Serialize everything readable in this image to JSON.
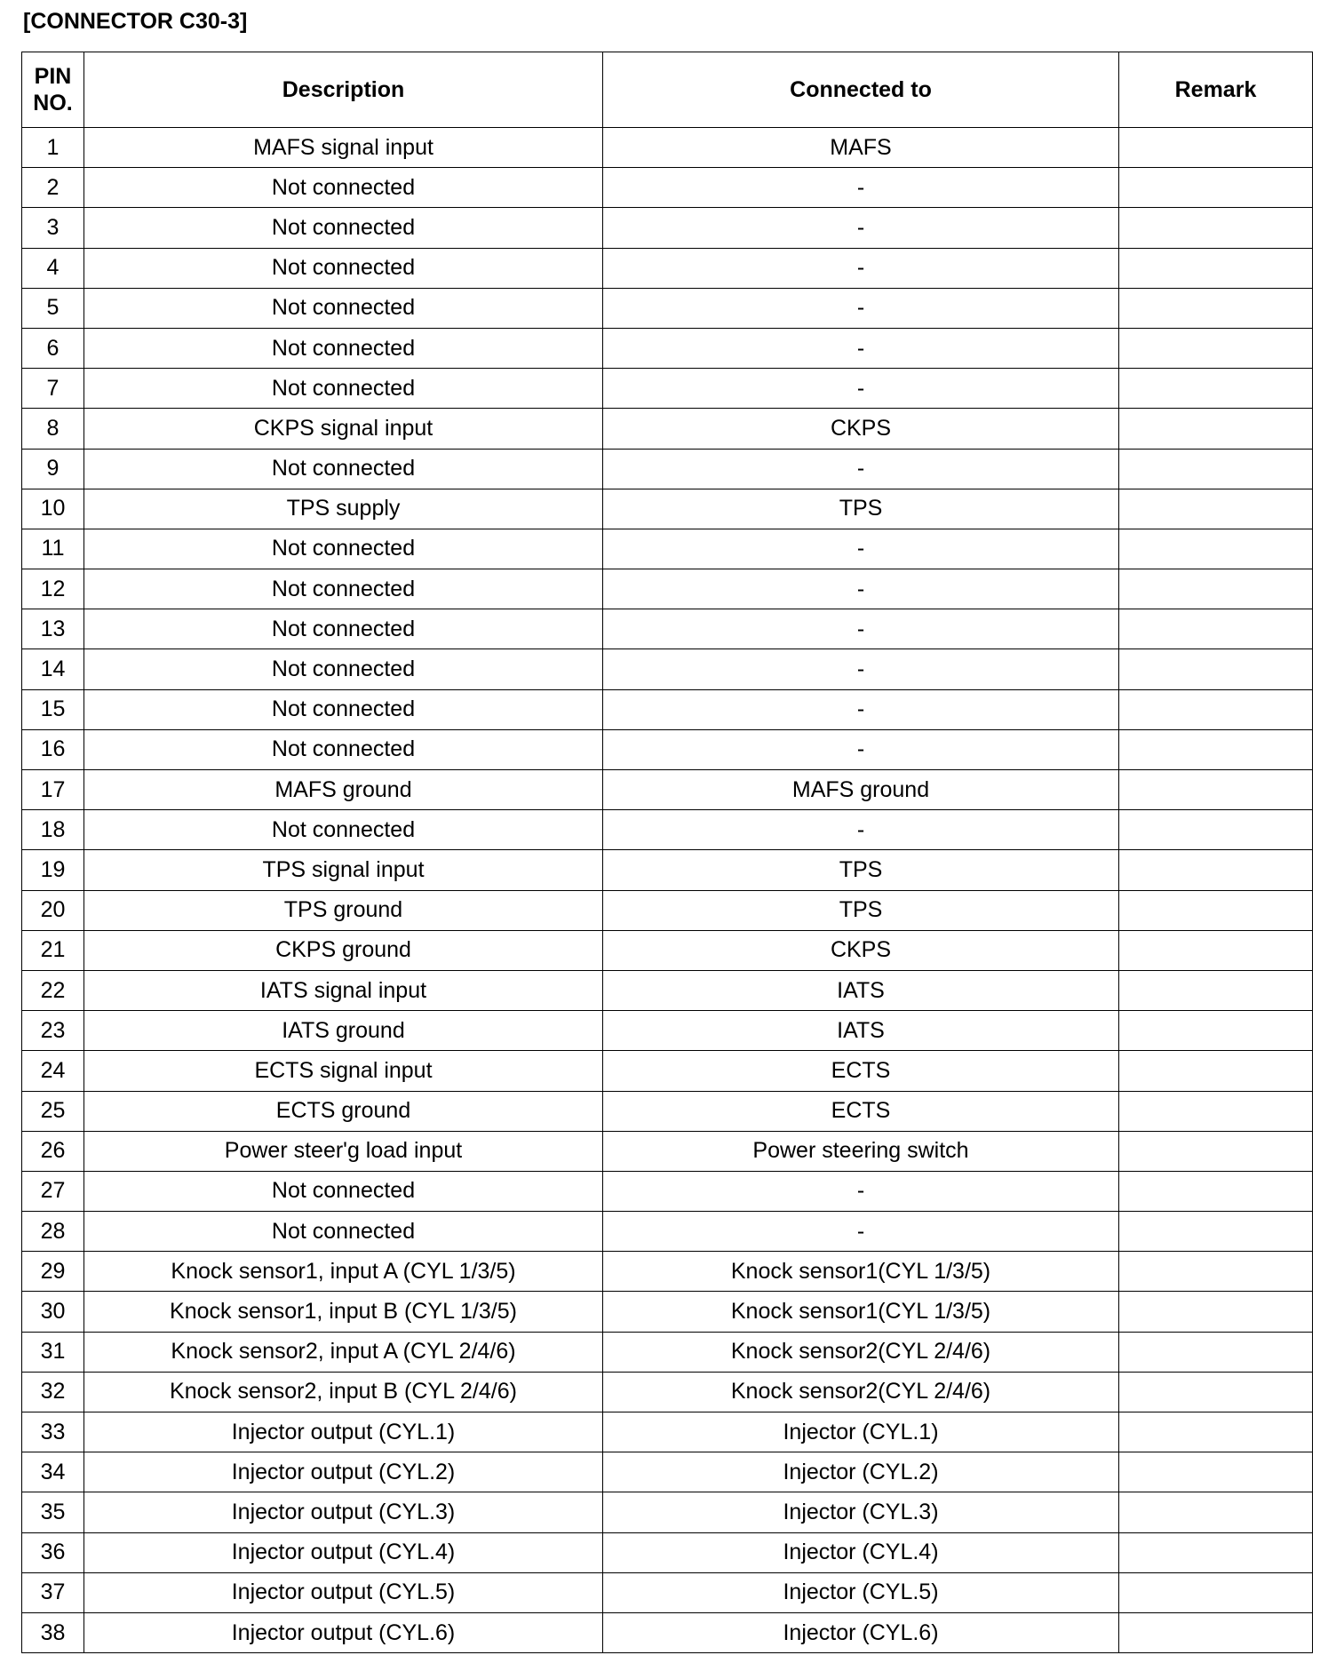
{
  "title": "[CONNECTOR C30-3]",
  "table": {
    "headers": {
      "pin": "PIN NO.",
      "description": "Description",
      "connected_to": "Connected to",
      "remark": "Remark"
    },
    "rows": [
      {
        "pin": "1",
        "description": "MAFS signal input",
        "connected_to": "MAFS",
        "remark": ""
      },
      {
        "pin": "2",
        "description": "Not connected",
        "connected_to": "-",
        "remark": ""
      },
      {
        "pin": "3",
        "description": "Not connected",
        "connected_to": "-",
        "remark": ""
      },
      {
        "pin": "4",
        "description": "Not connected",
        "connected_to": "-",
        "remark": ""
      },
      {
        "pin": "5",
        "description": "Not connected",
        "connected_to": "-",
        "remark": ""
      },
      {
        "pin": "6",
        "description": "Not connected",
        "connected_to": "-",
        "remark": ""
      },
      {
        "pin": "7",
        "description": "Not connected",
        "connected_to": "-",
        "remark": ""
      },
      {
        "pin": "8",
        "description": "CKPS signal input",
        "connected_to": "CKPS",
        "remark": ""
      },
      {
        "pin": "9",
        "description": "Not connected",
        "connected_to": "-",
        "remark": ""
      },
      {
        "pin": "10",
        "description": "TPS supply",
        "connected_to": "TPS",
        "remark": ""
      },
      {
        "pin": "11",
        "description": "Not connected",
        "connected_to": "-",
        "remark": ""
      },
      {
        "pin": "12",
        "description": "Not connected",
        "connected_to": "-",
        "remark": ""
      },
      {
        "pin": "13",
        "description": "Not connected",
        "connected_to": "-",
        "remark": ""
      },
      {
        "pin": "14",
        "description": "Not connected",
        "connected_to": "-",
        "remark": ""
      },
      {
        "pin": "15",
        "description": "Not connected",
        "connected_to": "-",
        "remark": ""
      },
      {
        "pin": "16",
        "description": "Not connected",
        "connected_to": "-",
        "remark": ""
      },
      {
        "pin": "17",
        "description": "MAFS ground",
        "connected_to": "MAFS ground",
        "remark": ""
      },
      {
        "pin": "18",
        "description": "Not connected",
        "connected_to": "-",
        "remark": ""
      },
      {
        "pin": "19",
        "description": "TPS signal input",
        "connected_to": "TPS",
        "remark": ""
      },
      {
        "pin": "20",
        "description": "TPS ground",
        "connected_to": "TPS",
        "remark": ""
      },
      {
        "pin": "21",
        "description": "CKPS ground",
        "connected_to": "CKPS",
        "remark": ""
      },
      {
        "pin": "22",
        "description": "IATS signal input",
        "connected_to": "IATS",
        "remark": ""
      },
      {
        "pin": "23",
        "description": "IATS ground",
        "connected_to": "IATS",
        "remark": ""
      },
      {
        "pin": "24",
        "description": "ECTS signal input",
        "connected_to": "ECTS",
        "remark": ""
      },
      {
        "pin": "25",
        "description": "ECTS ground",
        "connected_to": "ECTS",
        "remark": ""
      },
      {
        "pin": "26",
        "description": "Power steer'g load input",
        "connected_to": "Power steering switch",
        "remark": ""
      },
      {
        "pin": "27",
        "description": "Not connected",
        "connected_to": "-",
        "remark": ""
      },
      {
        "pin": "28",
        "description": "Not connected",
        "connected_to": "-",
        "remark": ""
      },
      {
        "pin": "29",
        "description": "Knock sensor1, input A (CYL 1/3/5)",
        "connected_to": "Knock sensor1(CYL 1/3/5)",
        "remark": ""
      },
      {
        "pin": "30",
        "description": "Knock sensor1, input B (CYL 1/3/5)",
        "connected_to": "Knock sensor1(CYL 1/3/5)",
        "remark": ""
      },
      {
        "pin": "31",
        "description": "Knock sensor2, input A (CYL 2/4/6)",
        "connected_to": "Knock sensor2(CYL 2/4/6)",
        "remark": ""
      },
      {
        "pin": "32",
        "description": "Knock sensor2, input B (CYL 2/4/6)",
        "connected_to": "Knock sensor2(CYL 2/4/6)",
        "remark": ""
      },
      {
        "pin": "33",
        "description": "Injector output (CYL.1)",
        "connected_to": "Injector (CYL.1)",
        "remark": ""
      },
      {
        "pin": "34",
        "description": "Injector output (CYL.2)",
        "connected_to": "Injector (CYL.2)",
        "remark": ""
      },
      {
        "pin": "35",
        "description": "Injector output (CYL.3)",
        "connected_to": "Injector (CYL.3)",
        "remark": ""
      },
      {
        "pin": "36",
        "description": "Injector output (CYL.4)",
        "connected_to": "Injector (CYL.4)",
        "remark": ""
      },
      {
        "pin": "37",
        "description": "Injector output (CYL.5)",
        "connected_to": "Injector (CYL.5)",
        "remark": ""
      },
      {
        "pin": "38",
        "description": "Injector output (CYL.6)",
        "connected_to": "Injector (CYL.6)",
        "remark": ""
      }
    ]
  }
}
